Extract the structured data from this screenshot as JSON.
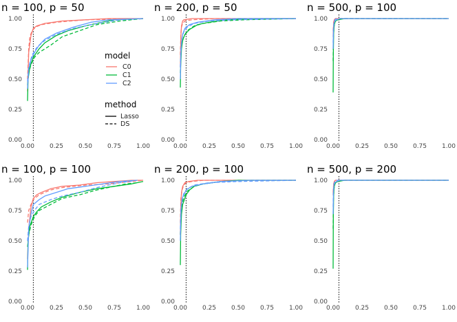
{
  "chart_data": {
    "type": "line",
    "xlim": [
      0,
      1
    ],
    "ylim": [
      0,
      1
    ],
    "x_ticks": [
      "0.00",
      "0.25",
      "0.50",
      "0.75",
      "1.00"
    ],
    "y_ticks": [
      "0.00",
      "0.25",
      "0.50",
      "0.75",
      "1.00"
    ],
    "reference_line_x": 0.05,
    "colors": {
      "C0": "#F8766D",
      "C1": "#00BA38",
      "C2": "#619CFF"
    },
    "legend": {
      "model_title": "model",
      "models": [
        "C0",
        "C1",
        "C2"
      ],
      "method_title": "method",
      "methods": [
        "Lasso",
        "DS"
      ]
    },
    "panels": [
      {
        "title": "n = 100, p = 50",
        "series": [
          {
            "model": "C0",
            "method": "Lasso",
            "x": [
              0,
              0.01,
              0.03,
              0.05,
              0.08,
              0.15,
              0.3,
              0.5,
              0.7,
              1.0
            ],
            "y": [
              0.4,
              0.72,
              0.86,
              0.92,
              0.94,
              0.96,
              0.98,
              0.99,
              1.0,
              1.0
            ]
          },
          {
            "model": "C0",
            "method": "DS",
            "x": [
              0,
              0.01,
              0.02,
              0.04,
              0.07,
              0.12,
              0.25,
              0.5,
              1.0
            ],
            "y": [
              0.5,
              0.75,
              0.85,
              0.9,
              0.93,
              0.95,
              0.97,
              0.99,
              1.0
            ]
          },
          {
            "model": "C1",
            "method": "Lasso",
            "x": [
              0,
              0.005,
              0.02,
              0.05,
              0.1,
              0.15,
              0.25,
              0.35,
              0.5,
              0.6,
              0.75,
              1.0
            ],
            "y": [
              0.32,
              0.5,
              0.6,
              0.68,
              0.75,
              0.8,
              0.86,
              0.9,
              0.94,
              0.96,
              0.99,
              1.0
            ]
          },
          {
            "model": "C1",
            "method": "DS",
            "x": [
              0,
              0.01,
              0.03,
              0.06,
              0.1,
              0.2,
              0.3,
              0.45,
              0.6,
              0.8,
              1.0
            ],
            "y": [
              0.45,
              0.55,
              0.62,
              0.68,
              0.72,
              0.78,
              0.85,
              0.9,
              0.95,
              0.98,
              1.0
            ]
          },
          {
            "model": "C2",
            "method": "Lasso",
            "x": [
              0,
              0.01,
              0.03,
              0.06,
              0.1,
              0.15,
              0.25,
              0.4,
              0.55,
              0.7,
              1.0
            ],
            "y": [
              0.42,
              0.58,
              0.66,
              0.72,
              0.78,
              0.83,
              0.88,
              0.93,
              0.97,
              0.99,
              1.0
            ]
          },
          {
            "model": "C2",
            "method": "DS",
            "x": [
              0,
              0.01,
              0.04,
              0.08,
              0.15,
              0.25,
              0.4,
              0.6,
              0.8,
              1.0
            ],
            "y": [
              0.48,
              0.6,
              0.7,
              0.76,
              0.82,
              0.87,
              0.92,
              0.96,
              0.99,
              1.0
            ]
          }
        ]
      },
      {
        "title": "n = 200, p = 50",
        "series": [
          {
            "model": "C0",
            "method": "Lasso",
            "x": [
              0,
              0.005,
              0.01,
              0.02,
              0.03,
              0.1,
              0.3,
              1.0
            ],
            "y": [
              0.6,
              0.85,
              0.94,
              0.98,
              0.99,
              1.0,
              1.0,
              1.0
            ]
          },
          {
            "model": "C0",
            "method": "DS",
            "x": [
              0,
              0.005,
              0.01,
              0.02,
              0.04,
              0.1,
              0.3,
              1.0
            ],
            "y": [
              0.7,
              0.88,
              0.93,
              0.96,
              0.98,
              0.99,
              1.0,
              1.0
            ]
          },
          {
            "model": "C1",
            "method": "Lasso",
            "x": [
              0,
              0.003,
              0.01,
              0.02,
              0.04,
              0.08,
              0.15,
              0.25,
              0.4,
              0.6,
              1.0
            ],
            "y": [
              0.43,
              0.6,
              0.75,
              0.82,
              0.87,
              0.91,
              0.95,
              0.97,
              0.99,
              1.0,
              1.0
            ]
          },
          {
            "model": "C1",
            "method": "DS",
            "x": [
              0,
              0.005,
              0.015,
              0.03,
              0.06,
              0.12,
              0.2,
              0.35,
              0.55,
              1.0
            ],
            "y": [
              0.55,
              0.72,
              0.8,
              0.85,
              0.9,
              0.94,
              0.96,
              0.98,
              0.99,
              1.0
            ]
          },
          {
            "model": "C2",
            "method": "Lasso",
            "x": [
              0,
              0.005,
              0.01,
              0.02,
              0.04,
              0.08,
              0.15,
              0.3,
              0.5,
              1.0
            ],
            "y": [
              0.5,
              0.7,
              0.8,
              0.87,
              0.92,
              0.95,
              0.97,
              0.99,
              1.0,
              1.0
            ]
          },
          {
            "model": "C2",
            "method": "DS",
            "x": [
              0,
              0.005,
              0.015,
              0.03,
              0.06,
              0.12,
              0.25,
              0.45,
              1.0
            ],
            "y": [
              0.6,
              0.75,
              0.84,
              0.89,
              0.93,
              0.96,
              0.98,
              0.99,
              1.0
            ]
          }
        ]
      },
      {
        "title": "n = 500, p = 100",
        "series": [
          {
            "model": "C0",
            "method": "Lasso",
            "x": [
              0,
              0.005,
              0.01,
              0.02,
              0.05,
              1.0
            ],
            "y": [
              0.85,
              0.97,
              0.99,
              1.0,
              1.0,
              1.0
            ]
          },
          {
            "model": "C0",
            "method": "DS",
            "x": [
              0,
              0.005,
              0.01,
              0.02,
              0.05,
              1.0
            ],
            "y": [
              0.9,
              0.97,
              0.99,
              1.0,
              1.0,
              1.0
            ]
          },
          {
            "model": "C1",
            "method": "Lasso",
            "x": [
              0,
              0.002,
              0.005,
              0.01,
              0.02,
              0.04,
              0.1,
              1.0
            ],
            "y": [
              0.39,
              0.7,
              0.88,
              0.95,
              0.98,
              0.99,
              1.0,
              1.0
            ]
          },
          {
            "model": "C1",
            "method": "DS",
            "x": [
              0,
              0.003,
              0.008,
              0.015,
              0.03,
              0.06,
              1.0
            ],
            "y": [
              0.65,
              0.85,
              0.93,
              0.97,
              0.99,
              1.0,
              1.0
            ]
          },
          {
            "model": "C2",
            "method": "Lasso",
            "x": [
              0,
              0.003,
              0.008,
              0.015,
              0.03,
              0.06,
              1.0
            ],
            "y": [
              0.75,
              0.9,
              0.96,
              0.98,
              0.99,
              1.0,
              1.0
            ]
          },
          {
            "model": "C2",
            "method": "DS",
            "x": [
              0,
              0.003,
              0.008,
              0.015,
              0.03,
              1.0
            ],
            "y": [
              0.8,
              0.92,
              0.97,
              0.99,
              1.0,
              1.0
            ]
          }
        ]
      },
      {
        "title": "n = 100, p = 100",
        "series": [
          {
            "model": "C0",
            "method": "Lasso",
            "x": [
              0,
              0.01,
              0.03,
              0.05,
              0.08,
              0.12,
              0.2,
              0.3,
              0.45,
              0.6,
              0.75,
              0.9,
              1.0
            ],
            "y": [
              0.35,
              0.6,
              0.78,
              0.85,
              0.88,
              0.9,
              0.93,
              0.95,
              0.96,
              0.98,
              0.99,
              1.0,
              1.0
            ]
          },
          {
            "model": "C0",
            "method": "DS",
            "x": [
              0,
              0.01,
              0.03,
              0.05,
              0.1,
              0.2,
              0.3,
              0.5,
              0.7,
              0.9,
              1.0
            ],
            "y": [
              0.65,
              0.75,
              0.8,
              0.84,
              0.88,
              0.92,
              0.94,
              0.96,
              0.97,
              0.99,
              1.0
            ]
          },
          {
            "model": "C1",
            "method": "Lasso",
            "x": [
              0,
              0.005,
              0.02,
              0.05,
              0.08,
              0.12,
              0.2,
              0.3,
              0.45,
              0.6,
              0.75,
              0.9,
              1.0
            ],
            "y": [
              0.26,
              0.5,
              0.62,
              0.7,
              0.74,
              0.78,
              0.82,
              0.86,
              0.9,
              0.93,
              0.95,
              0.97,
              0.99
            ]
          },
          {
            "model": "C1",
            "method": "DS",
            "x": [
              0,
              0.01,
              0.03,
              0.06,
              0.1,
              0.2,
              0.3,
              0.45,
              0.6,
              0.75,
              0.85,
              0.95
            ],
            "y": [
              0.45,
              0.55,
              0.63,
              0.7,
              0.75,
              0.8,
              0.85,
              0.88,
              0.92,
              0.95,
              0.97,
              0.98
            ]
          },
          {
            "model": "C2",
            "method": "Lasso",
            "x": [
              0,
              0.01,
              0.03,
              0.05,
              0.1,
              0.15,
              0.25,
              0.35,
              0.5,
              0.65,
              0.8,
              0.95
            ],
            "y": [
              0.28,
              0.6,
              0.72,
              0.8,
              0.84,
              0.87,
              0.9,
              0.93,
              0.95,
              0.97,
              0.99,
              1.0
            ]
          },
          {
            "model": "C2",
            "method": "DS",
            "x": [
              0,
              0.01,
              0.03,
              0.06,
              0.1,
              0.2,
              0.3,
              0.45,
              0.6,
              0.8,
              0.95
            ],
            "y": [
              0.5,
              0.62,
              0.7,
              0.75,
              0.8,
              0.84,
              0.87,
              0.9,
              0.94,
              0.98,
              1.0
            ]
          }
        ]
      },
      {
        "title": "n = 200, p = 100",
        "series": [
          {
            "model": "C0",
            "method": "Lasso",
            "x": [
              0,
              0.005,
              0.01,
              0.02,
              0.04,
              0.07,
              0.15,
              0.3,
              1.0
            ],
            "y": [
              0.55,
              0.8,
              0.9,
              0.95,
              0.98,
              0.99,
              1.0,
              1.0,
              1.0
            ]
          },
          {
            "model": "C0",
            "method": "DS",
            "x": [
              0,
              0.005,
              0.015,
              0.03,
              0.05,
              0.1,
              0.2,
              1.0
            ],
            "y": [
              0.65,
              0.85,
              0.92,
              0.96,
              0.98,
              0.99,
              1.0,
              1.0
            ]
          },
          {
            "model": "C1",
            "method": "Lasso",
            "x": [
              0,
              0.003,
              0.01,
              0.02,
              0.05,
              0.08,
              0.12,
              0.2,
              0.35,
              0.5,
              0.7,
              1.0
            ],
            "y": [
              0.3,
              0.55,
              0.72,
              0.8,
              0.88,
              0.92,
              0.95,
              0.97,
              0.99,
              1.0,
              1.0,
              1.0
            ]
          },
          {
            "model": "C1",
            "method": "DS",
            "x": [
              0,
              0.005,
              0.015,
              0.03,
              0.06,
              0.12,
              0.2,
              0.35,
              0.6,
              1.0
            ],
            "y": [
              0.55,
              0.7,
              0.8,
              0.86,
              0.91,
              0.95,
              0.97,
              0.99,
              1.0,
              1.0
            ]
          },
          {
            "model": "C2",
            "method": "Lasso",
            "x": [
              0,
              0.005,
              0.01,
              0.02,
              0.05,
              0.1,
              0.2,
              0.35,
              0.6,
              1.0
            ],
            "y": [
              0.5,
              0.72,
              0.8,
              0.86,
              0.92,
              0.95,
              0.97,
              0.99,
              1.0,
              1.0
            ]
          },
          {
            "model": "C2",
            "method": "DS",
            "x": [
              0,
              0.005,
              0.015,
              0.03,
              0.06,
              0.12,
              0.25,
              0.5,
              1.0
            ],
            "y": [
              0.6,
              0.75,
              0.84,
              0.89,
              0.93,
              0.96,
              0.98,
              0.99,
              1.0
            ]
          }
        ]
      },
      {
        "title": "n = 500, p = 200",
        "series": [
          {
            "model": "C0",
            "method": "Lasso",
            "x": [
              0,
              0.005,
              0.01,
              0.02,
              0.05,
              1.0
            ],
            "y": [
              0.88,
              0.97,
              0.99,
              1.0,
              1.0,
              1.0
            ]
          },
          {
            "model": "C0",
            "method": "DS",
            "x": [
              0,
              0.005,
              0.01,
              0.02,
              0.05,
              1.0
            ],
            "y": [
              0.9,
              0.97,
              0.99,
              1.0,
              1.0,
              1.0
            ]
          },
          {
            "model": "C1",
            "method": "Lasso",
            "x": [
              0,
              0.002,
              0.005,
              0.01,
              0.02,
              0.04,
              0.1,
              1.0
            ],
            "y": [
              0.27,
              0.7,
              0.88,
              0.95,
              0.98,
              0.99,
              1.0,
              1.0
            ]
          },
          {
            "model": "C1",
            "method": "DS",
            "x": [
              0,
              0.003,
              0.008,
              0.015,
              0.03,
              0.06,
              1.0
            ],
            "y": [
              0.6,
              0.84,
              0.93,
              0.97,
              0.99,
              1.0,
              1.0
            ]
          },
          {
            "model": "C2",
            "method": "Lasso",
            "x": [
              0,
              0.003,
              0.008,
              0.015,
              0.03,
              0.06,
              1.0
            ],
            "y": [
              0.72,
              0.9,
              0.96,
              0.98,
              0.99,
              1.0,
              1.0
            ]
          },
          {
            "model": "C2",
            "method": "DS",
            "x": [
              0,
              0.003,
              0.008,
              0.015,
              0.03,
              1.0
            ],
            "y": [
              0.78,
              0.92,
              0.97,
              0.99,
              1.0,
              1.0
            ]
          }
        ]
      }
    ]
  }
}
